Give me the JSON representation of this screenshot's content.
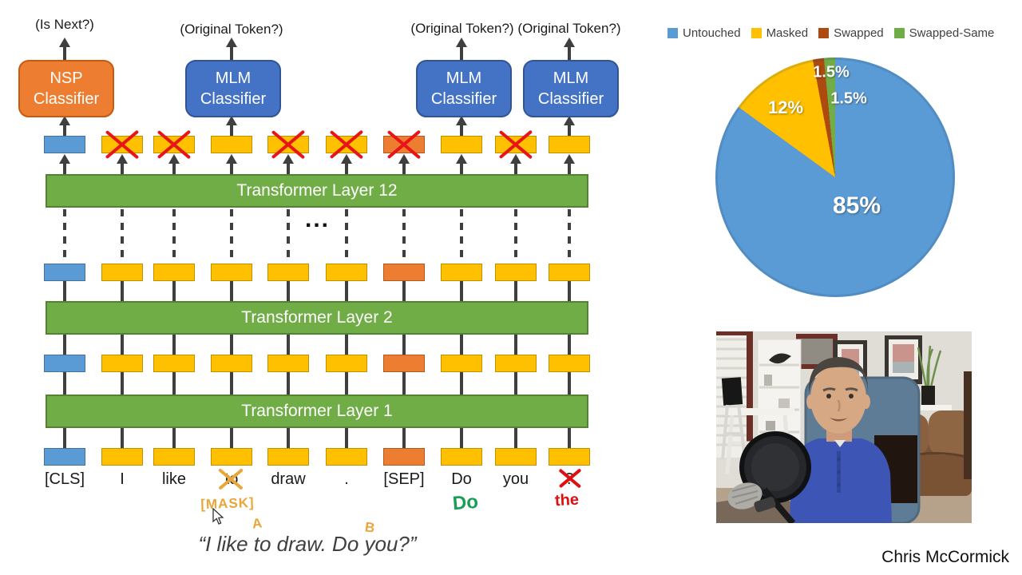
{
  "diagram": {
    "outputs": [
      {
        "label": "(Is Next?)"
      },
      {
        "label": "(Original Token?)"
      },
      {
        "label": "(Original Token?)"
      },
      {
        "label": "(Original Token?)"
      }
    ],
    "classifiers": [
      {
        "line1": "NSP",
        "line2": "Classifier",
        "type": "nsp"
      },
      {
        "line1": "MLM",
        "line2": "Classifier",
        "type": "mlm"
      },
      {
        "line1": "MLM",
        "line2": "Classifier",
        "type": "mlm"
      },
      {
        "line1": "MLM",
        "line2": "Classifier",
        "type": "mlm"
      }
    ],
    "layers": [
      {
        "label": "Transformer Layer 12"
      },
      {
        "label": "Transformer Layer 2"
      },
      {
        "label": "Transformer Layer 1"
      }
    ],
    "ellipsis": "...",
    "tokens": [
      {
        "label": "[CLS]",
        "type": "cls",
        "crossed": false,
        "classifier": 0
      },
      {
        "label": "I",
        "type": "word",
        "crossed": true
      },
      {
        "label": "like",
        "type": "word",
        "crossed": true
      },
      {
        "label": "to",
        "type": "word",
        "crossed": false,
        "classifier": 1,
        "strike": "gold",
        "annotation": {
          "text": "[MASK]",
          "color": "gold"
        }
      },
      {
        "label": "draw",
        "type": "word",
        "crossed": true
      },
      {
        "label": ".",
        "type": "word",
        "crossed": true
      },
      {
        "label": "[SEP]",
        "type": "sep",
        "crossed": true
      },
      {
        "label": "Do",
        "type": "word",
        "crossed": false,
        "classifier": 2,
        "annotation": {
          "text": "Do",
          "color": "green"
        }
      },
      {
        "label": "you",
        "type": "word",
        "crossed": true
      },
      {
        "label": "?",
        "type": "word",
        "crossed": false,
        "classifier": 3,
        "strike": "red",
        "annotation": {
          "text": "the",
          "color": "red"
        }
      }
    ],
    "segment_letters": [
      {
        "text": "A"
      },
      {
        "text": "B"
      }
    ],
    "quote": "“I like to draw. Do you?”"
  },
  "chart_data": {
    "type": "pie",
    "categories": [
      "Untouched",
      "Masked",
      "Swapped",
      "Swapped-Same"
    ],
    "values": [
      85,
      12,
      1.5,
      1.5
    ],
    "labels": [
      "85%",
      "12%",
      "1.5%",
      "1.5%"
    ],
    "colors": [
      "#5B9BD5",
      "#FFC000",
      "#AC4A0F",
      "#70AD47"
    ],
    "legend_position": "top",
    "start_angle_deg": 0,
    "direction": "clockwise"
  },
  "webcam": {
    "caption": "Chris McCormick"
  },
  "colors": {
    "token_yellow": "#FFC000",
    "token_blue": "#5B9BD5",
    "token_orange": "#ED7D31",
    "layer_green": "#70AD47",
    "nsp_orange": "#ED7D31",
    "mlm_blue": "#4472C4",
    "line_gray": "#3F3F3F",
    "cross_red": "#E81416",
    "hand_gold": "#E9A63A",
    "hand_green": "#1A9E57",
    "hand_red": "#E01010"
  }
}
